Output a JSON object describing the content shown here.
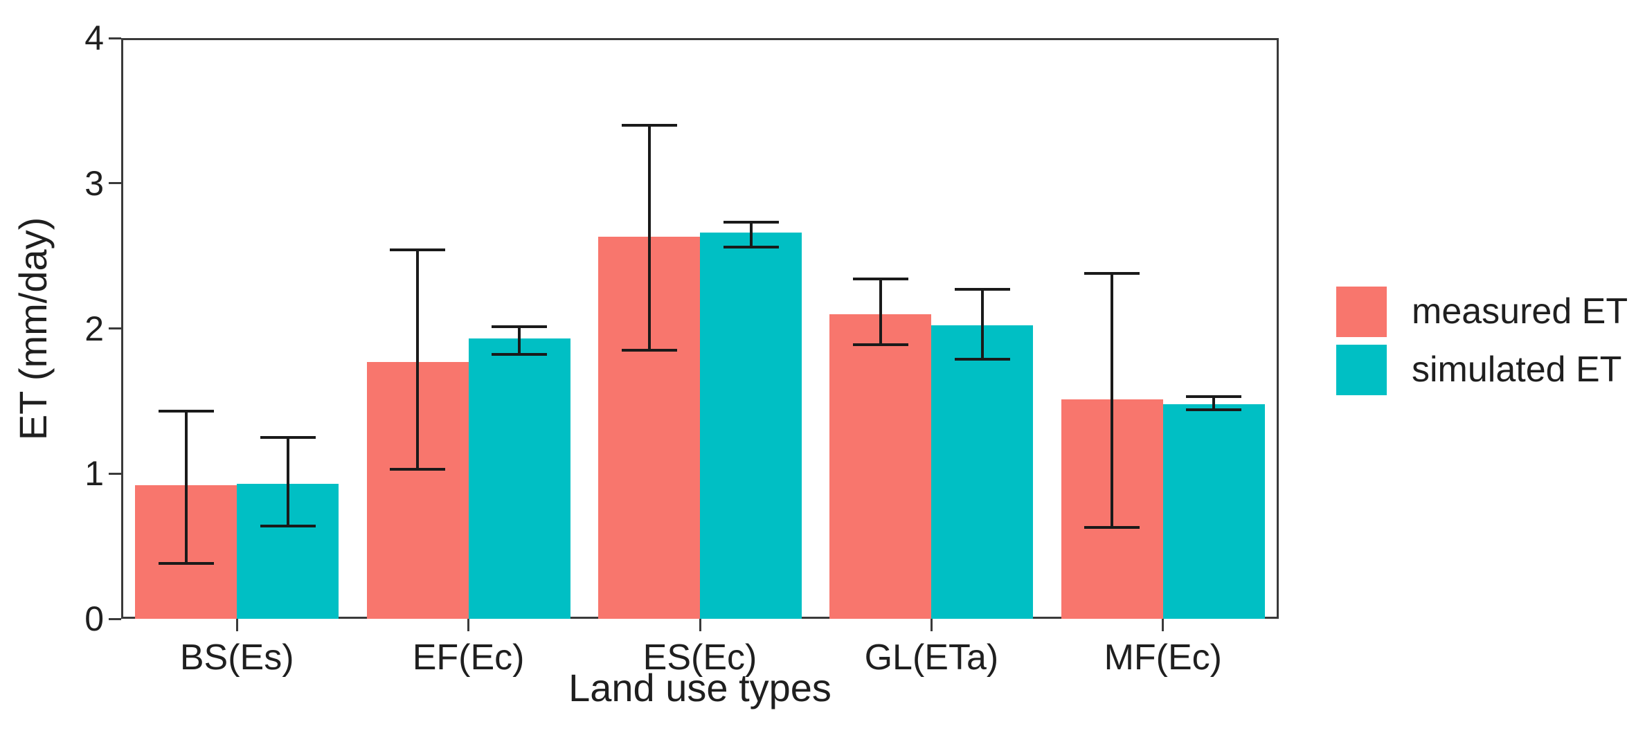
{
  "figure": {
    "background": "#ffffff",
    "panel_border_color": "#3a3a3a",
    "axis_text_color": "#1f1f1f",
    "errorbar_color": "#1a1a1a"
  },
  "chart_data": {
    "type": "bar",
    "title": "",
    "xlabel": "Land use types",
    "ylabel": "ET (mm/day)",
    "ylim": [
      0,
      4
    ],
    "yticks": [
      0,
      1,
      2,
      3,
      4
    ],
    "grid": false,
    "legend_position": "right-center",
    "categories": [
      "BS(Es)",
      "EF(Ec)",
      "ES(Ec)",
      "GL(ETa)",
      "MF(Ec)"
    ],
    "series": [
      {
        "name": "measured ET",
        "color": "#F8766D",
        "values": [
          0.92,
          1.77,
          2.63,
          2.1,
          1.51
        ],
        "error_low": [
          0.38,
          1.03,
          1.85,
          1.89,
          0.63
        ],
        "error_high": [
          1.43,
          2.54,
          3.4,
          2.34,
          2.38
        ]
      },
      {
        "name": "simulated ET",
        "color": "#00BFC4",
        "values": [
          0.93,
          1.93,
          2.66,
          2.02,
          1.48
        ],
        "error_low": [
          0.64,
          1.82,
          2.56,
          1.79,
          1.44
        ],
        "error_high": [
          1.25,
          2.01,
          2.73,
          2.27,
          1.53
        ]
      }
    ]
  }
}
